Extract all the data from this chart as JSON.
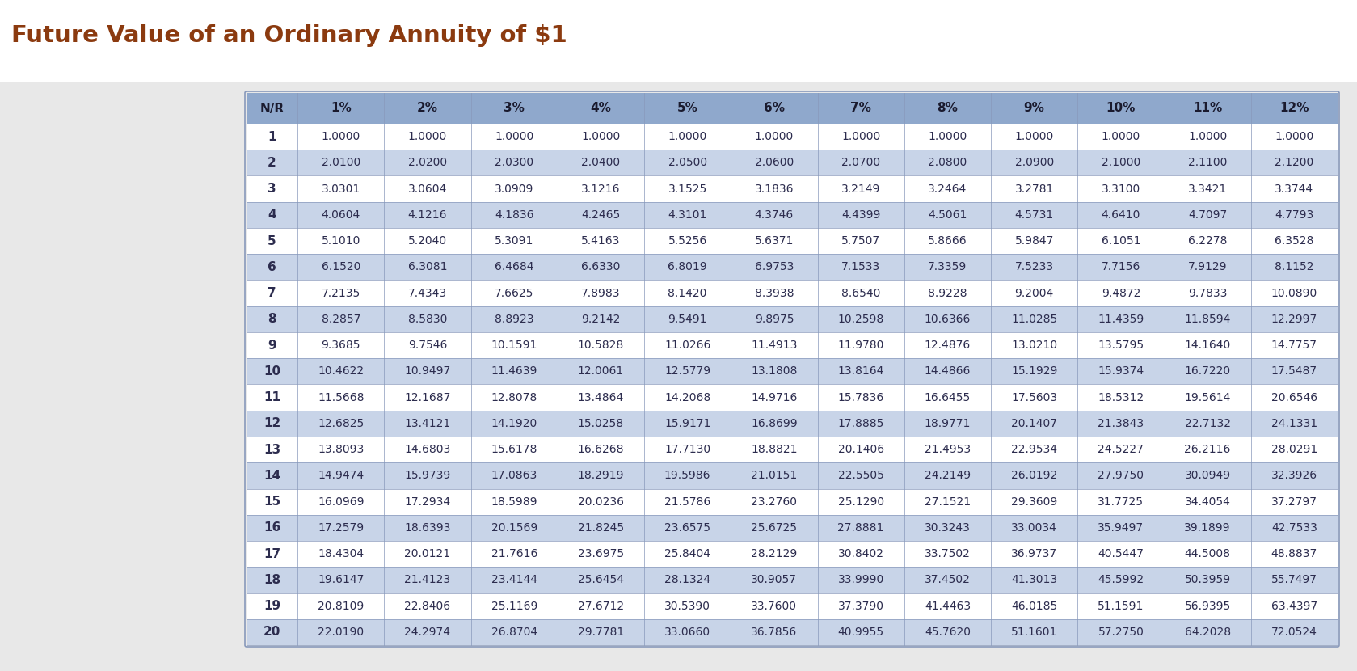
{
  "title": "Future Value of an Ordinary Annuity of $1",
  "title_color": "#8B3A0F",
  "title_fontsize": 21,
  "title_fontweight": "bold",
  "background_color": "#ffffff",
  "outer_bg": "#e8e8e8",
  "table_bg": "#ffffff",
  "header_bg": "#8fa8cc",
  "header_text_color": "#1a1a2e",
  "odd_row_bg": "#ffffff",
  "even_row_bg": "#c8d4e8",
  "text_color": "#2c2c4e",
  "border_color": "#8899bb",
  "columns": [
    "N/R",
    "1%",
    "2%",
    "3%",
    "4%",
    "5%",
    "6%",
    "7%",
    "8%",
    "9%",
    "10%",
    "11%",
    "12%"
  ],
  "rows": [
    [
      1,
      1.0,
      1.0,
      1.0,
      1.0,
      1.0,
      1.0,
      1.0,
      1.0,
      1.0,
      1.0,
      1.0,
      1.0
    ],
    [
      2,
      2.01,
      2.02,
      2.03,
      2.04,
      2.05,
      2.06,
      2.07,
      2.08,
      2.09,
      2.1,
      2.11,
      2.12
    ],
    [
      3,
      3.0301,
      3.0604,
      3.0909,
      3.1216,
      3.1525,
      3.1836,
      3.2149,
      3.2464,
      3.2781,
      3.31,
      3.3421,
      3.3744
    ],
    [
      4,
      4.0604,
      4.1216,
      4.1836,
      4.2465,
      4.3101,
      4.3746,
      4.4399,
      4.5061,
      4.5731,
      4.641,
      4.7097,
      4.7793
    ],
    [
      5,
      5.101,
      5.204,
      5.3091,
      5.4163,
      5.5256,
      5.6371,
      5.7507,
      5.8666,
      5.9847,
      6.1051,
      6.2278,
      6.3528
    ],
    [
      6,
      6.152,
      6.3081,
      6.4684,
      6.633,
      6.8019,
      6.9753,
      7.1533,
      7.3359,
      7.5233,
      7.7156,
      7.9129,
      8.1152
    ],
    [
      7,
      7.2135,
      7.4343,
      7.6625,
      7.8983,
      8.142,
      8.3938,
      8.654,
      8.9228,
      9.2004,
      9.4872,
      9.7833,
      10.089
    ],
    [
      8,
      8.2857,
      8.583,
      8.8923,
      9.2142,
      9.5491,
      9.8975,
      10.2598,
      10.6366,
      11.0285,
      11.4359,
      11.8594,
      12.2997
    ],
    [
      9,
      9.3685,
      9.7546,
      10.1591,
      10.5828,
      11.0266,
      11.4913,
      11.978,
      12.4876,
      13.021,
      13.5795,
      14.164,
      14.7757
    ],
    [
      10,
      10.4622,
      10.9497,
      11.4639,
      12.0061,
      12.5779,
      13.1808,
      13.8164,
      14.4866,
      15.1929,
      15.9374,
      16.722,
      17.5487
    ],
    [
      11,
      11.5668,
      12.1687,
      12.8078,
      13.4864,
      14.2068,
      14.9716,
      15.7836,
      16.6455,
      17.5603,
      18.5312,
      19.5614,
      20.6546
    ],
    [
      12,
      12.6825,
      13.4121,
      14.192,
      15.0258,
      15.9171,
      16.8699,
      17.8885,
      18.9771,
      20.1407,
      21.3843,
      22.7132,
      24.1331
    ],
    [
      13,
      13.8093,
      14.6803,
      15.6178,
      16.6268,
      17.713,
      18.8821,
      20.1406,
      21.4953,
      22.9534,
      24.5227,
      26.2116,
      28.0291
    ],
    [
      14,
      14.9474,
      15.9739,
      17.0863,
      18.2919,
      19.5986,
      21.0151,
      22.5505,
      24.2149,
      26.0192,
      27.975,
      30.0949,
      32.3926
    ],
    [
      15,
      16.0969,
      17.2934,
      18.5989,
      20.0236,
      21.5786,
      23.276,
      25.129,
      27.1521,
      29.3609,
      31.7725,
      34.4054,
      37.2797
    ],
    [
      16,
      17.2579,
      18.6393,
      20.1569,
      21.8245,
      23.6575,
      25.6725,
      27.8881,
      30.3243,
      33.0034,
      35.9497,
      39.1899,
      42.7533
    ],
    [
      17,
      18.4304,
      20.0121,
      21.7616,
      23.6975,
      25.8404,
      28.2129,
      30.8402,
      33.7502,
      36.9737,
      40.5447,
      44.5008,
      48.8837
    ],
    [
      18,
      19.6147,
      21.4123,
      23.4144,
      25.6454,
      28.1324,
      30.9057,
      33.999,
      37.4502,
      41.3013,
      45.5992,
      50.3959,
      55.7497
    ],
    [
      19,
      20.8109,
      22.8406,
      25.1169,
      27.6712,
      30.539,
      33.76,
      37.379,
      41.4463,
      46.0185,
      51.1591,
      56.9395,
      63.4397
    ],
    [
      20,
      22.019,
      24.2974,
      26.8704,
      29.7781,
      33.066,
      36.7856,
      40.9955,
      45.762,
      51.1601,
      57.275,
      64.2028,
      72.0524
    ]
  ]
}
